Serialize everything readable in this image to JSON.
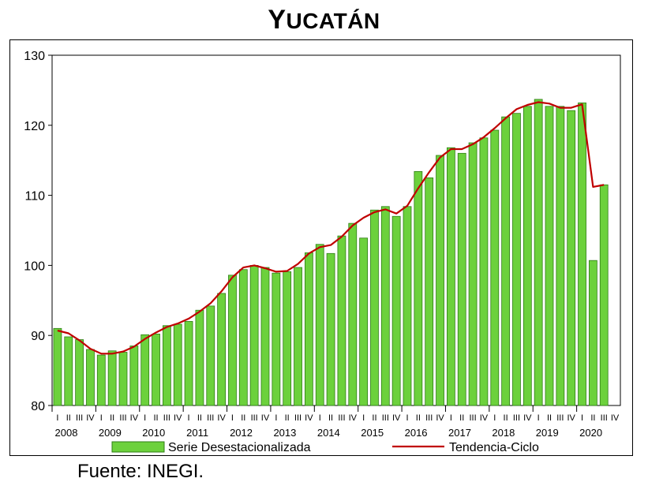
{
  "title": "YUCATÁN",
  "source": "Fuente: INEGI.",
  "chart_data": {
    "type": "bar",
    "title": "YUCATÁN",
    "xlabel": "",
    "ylabel": "",
    "ylim": [
      80,
      130
    ],
    "yticks": [
      80,
      90,
      100,
      110,
      120,
      130
    ],
    "quarter_labels": [
      "I",
      "II",
      "III",
      "IV"
    ],
    "years": [
      "2008",
      "2009",
      "2010",
      "2011",
      "2012",
      "2013",
      "2014",
      "2015",
      "2016",
      "2017",
      "2018",
      "2019",
      "2020"
    ],
    "grid": false,
    "legend": "bottom",
    "series": [
      {
        "name": "Serie Desestacionalizada",
        "type": "bar",
        "color": "#6cd13c",
        "values": [
          91.0,
          89.8,
          89.4,
          88.0,
          87.2,
          87.8,
          87.6,
          88.5,
          90.1,
          90.2,
          91.4,
          91.6,
          92.0,
          93.6,
          94.2,
          96.0,
          98.6,
          99.4,
          100.0,
          99.7,
          98.9,
          99.1,
          99.7,
          101.8,
          103.0,
          101.7,
          104.2,
          106.0,
          103.9,
          107.9,
          108.4,
          107.0,
          108.4,
          113.4,
          112.5,
          115.7,
          116.8,
          116.0,
          117.5,
          118.2,
          119.3,
          121.2,
          121.7,
          122.7,
          123.7,
          122.7,
          122.7,
          122.1,
          123.2,
          100.7,
          111.5
        ]
      },
      {
        "name": "Tendencia-Ciclo",
        "type": "line",
        "color": "#c00000",
        "values": [
          90.7,
          90.3,
          89.3,
          88.1,
          87.4,
          87.4,
          87.7,
          88.4,
          89.5,
          90.4,
          91.2,
          91.7,
          92.4,
          93.4,
          94.6,
          96.3,
          98.3,
          99.7,
          100.0,
          99.6,
          99.1,
          99.2,
          100.2,
          101.7,
          102.6,
          102.9,
          104.1,
          105.7,
          106.8,
          107.6,
          108.0,
          107.4,
          108.5,
          111.0,
          113.3,
          115.4,
          116.6,
          116.6,
          117.3,
          118.3,
          119.6,
          121.0,
          122.3,
          122.9,
          123.3,
          123.1,
          122.5,
          122.5,
          123.0,
          111.2,
          111.5
        ]
      }
    ]
  }
}
